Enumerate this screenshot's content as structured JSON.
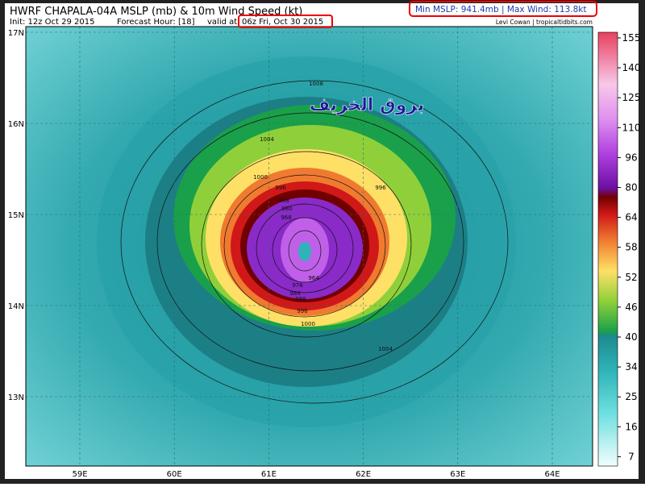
{
  "header": {
    "title": "HWRF CHAPALA-04A MSLP (mb) & 10m Wind Speed (kt)",
    "init": "Init: 12z Oct 29 2015",
    "forecast_hour": "Forecast Hour: [18]",
    "valid_prefix": "valid at",
    "valid_time": "06z Fri, Oct 30 2015",
    "stats": "Min MSLP: 941.4mb | Max Wind: 113.8kt",
    "credit": "Levi Cowan | tropicaltidbits.com"
  },
  "watermark": "بروق الخريف",
  "map": {
    "lat_labels": [
      "17N",
      "16N",
      "15N",
      "14N",
      "13N"
    ],
    "lon_labels": [
      "59E",
      "60E",
      "61E",
      "62E",
      "63E",
      "64E"
    ],
    "isobar_labels": [
      "1008",
      "1004",
      "1000",
      "996",
      "996",
      "988",
      "980",
      "968",
      "964",
      "976",
      "984",
      "988",
      "996",
      "1000",
      "1004"
    ]
  },
  "colorbar": {
    "labels": [
      "155",
      "140",
      "125",
      "110",
      "96",
      "80",
      "64",
      "58",
      "52",
      "46",
      "40",
      "34",
      "25",
      "16",
      "7"
    ]
  }
}
